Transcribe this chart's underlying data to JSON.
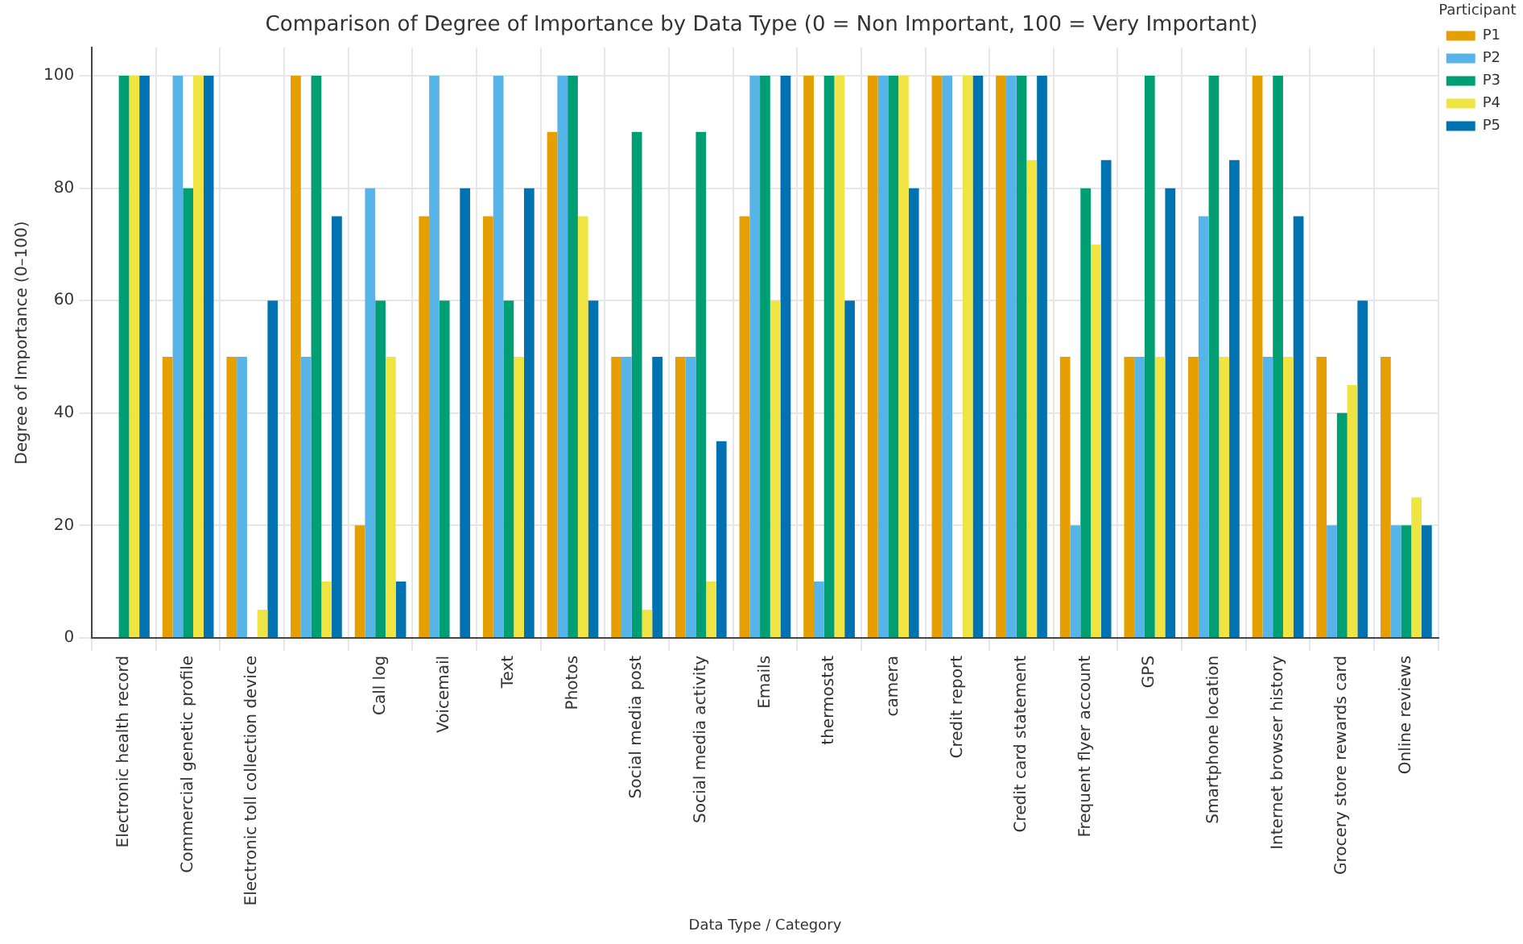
{
  "chart_data": {
    "type": "bar",
    "title": "Comparison of Degree of Importance by Data Type (0 = Non Important, 100 = Very Important)",
    "xlabel": "Data Type / Category",
    "ylabel": "Degree of Importance (0–100)",
    "legend_title": "Participant",
    "legend": "top right",
    "grid": true,
    "ylim": [
      0,
      105
    ],
    "yticks": [
      0,
      20,
      40,
      60,
      80,
      100
    ],
    "categories": [
      "Electronic health record",
      "Commercial genetic profile",
      "Electronic toll collection device",
      null,
      "Call log",
      "Voicemail",
      "Text",
      "Photos",
      "Social media post",
      "Social media activity",
      "Emails",
      "thermostat",
      "camera",
      "Credit report",
      "Credit card statement",
      "Frequent flyer account",
      "GPS",
      "Smartphone location",
      "Internet browser history",
      "Grocery store rewards card",
      "Online reviews"
    ],
    "series": [
      {
        "name": "P1",
        "color": "#e69f00",
        "values": [
          0,
          50,
          50,
          100,
          20,
          75,
          75,
          90,
          50,
          50,
          75,
          100,
          100,
          100,
          100,
          50,
          50,
          50,
          100,
          50,
          50
        ]
      },
      {
        "name": "P2",
        "color": "#56b4e9",
        "values": [
          0,
          100,
          50,
          50,
          80,
          100,
          100,
          100,
          50,
          50,
          100,
          10,
          100,
          100,
          100,
          20,
          50,
          75,
          50,
          20,
          20
        ]
      },
      {
        "name": "P3",
        "color": "#009e73",
        "values": [
          100,
          80,
          0,
          100,
          60,
          60,
          60,
          100,
          90,
          90,
          100,
          100,
          100,
          0,
          100,
          80,
          100,
          100,
          100,
          40,
          20
        ]
      },
      {
        "name": "P4",
        "color": "#f0e442",
        "values": [
          100,
          100,
          5,
          10,
          50,
          0,
          50,
          75,
          5,
          10,
          60,
          100,
          100,
          100,
          85,
          70,
          50,
          50,
          50,
          45,
          25
        ]
      },
      {
        "name": "P5",
        "color": "#0072b2",
        "values": [
          100,
          100,
          60,
          75,
          10,
          80,
          80,
          60,
          50,
          35,
          100,
          60,
          80,
          100,
          100,
          85,
          80,
          85,
          75,
          60,
          20
        ]
      }
    ]
  }
}
